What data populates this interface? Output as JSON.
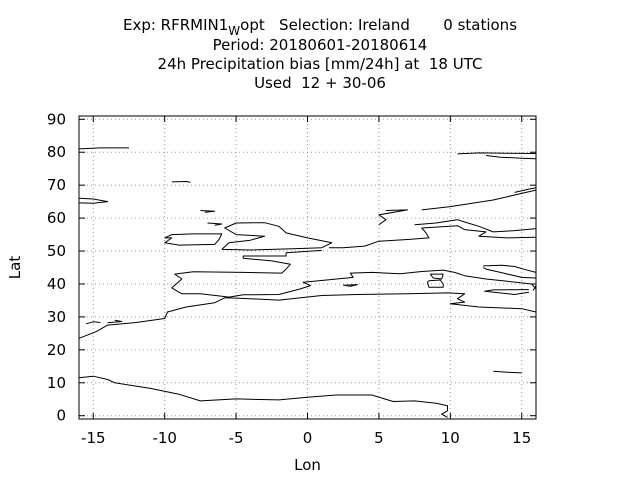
{
  "chart_data": {
    "type": "map",
    "title_lines": {
      "exp_prefix": "Exp: RFRMIN1",
      "exp_subscript": "W",
      "exp_suffix": "opt   Selection: Ireland       0 stations",
      "period": "Period: 20180601-20180614",
      "parameter": "24h Precipitation bias [mm/24h] at  18 UTC",
      "used": "Used  12 + 30-06"
    },
    "xlabel": "Lon",
    "ylabel": "Lat",
    "xlim": [
      -16,
      16
    ],
    "ylim": [
      -1,
      91
    ],
    "xticks": [
      -15,
      -10,
      -5,
      0,
      5,
      10,
      15
    ],
    "yticks": [
      0,
      10,
      20,
      30,
      40,
      50,
      60,
      70,
      80,
      90
    ],
    "xtick_labels": [
      "-15",
      "-10",
      "-5",
      "0",
      "5",
      "10",
      "15"
    ],
    "ytick_labels": [
      "0",
      "10",
      "20",
      "30",
      "40",
      "50",
      "60",
      "70",
      "80",
      "90"
    ],
    "grid": true,
    "stations": [],
    "coastlines": [
      [
        [
          -16,
          81.0
        ],
        [
          -14.5,
          81.3
        ],
        [
          -12.5,
          81.3
        ]
      ],
      [
        [
          -16,
          66.0
        ],
        [
          -15,
          65.8
        ],
        [
          -14,
          65.0
        ],
        [
          -15,
          64.5
        ],
        [
          -16,
          64.6
        ]
      ],
      [
        [
          -9.5,
          71.0
        ],
        [
          -8.5,
          71.1
        ],
        [
          -8.2,
          70.9
        ]
      ],
      [
        [
          -7.5,
          62.3
        ],
        [
          -6.5,
          62.1
        ],
        [
          -7.2,
          61.8
        ]
      ],
      [
        [
          -10,
          54.0
        ],
        [
          -9.5,
          55.0
        ],
        [
          -8,
          55.2
        ],
        [
          -6,
          55.2
        ],
        [
          -6.2,
          53.5
        ],
        [
          -6.5,
          52.0
        ],
        [
          -9,
          51.8
        ],
        [
          -10,
          52.5
        ],
        [
          -9.5,
          54.0
        ],
        [
          -10,
          54.0
        ]
      ],
      [
        [
          -6,
          50.5
        ],
        [
          -5.5,
          52.5
        ],
        [
          -4,
          53.3
        ],
        [
          -3,
          54.5
        ],
        [
          -5,
          55.0
        ],
        [
          -5.8,
          57.0
        ],
        [
          -5,
          58.5
        ],
        [
          -3,
          58.6
        ],
        [
          -2,
          57.5
        ],
        [
          -1.5,
          55.5
        ],
        [
          0,
          54.0
        ],
        [
          1.7,
          52.5
        ],
        [
          1,
          51.0
        ],
        [
          -1,
          50.7
        ],
        [
          -4,
          50.3
        ],
        [
          -6,
          50.5
        ]
      ],
      [
        [
          -7,
          58.5
        ],
        [
          -6,
          58.2
        ],
        [
          -6.5,
          57.8
        ]
      ],
      [
        [
          1.5,
          51.0
        ],
        [
          2.5,
          51.0
        ],
        [
          4,
          51.5
        ],
        [
          5,
          53.0
        ],
        [
          7,
          53.5
        ],
        [
          8.5,
          54.0
        ],
        [
          8.3,
          55.5
        ],
        [
          8,
          57.0
        ],
        [
          10.5,
          57.7
        ],
        [
          11,
          56.5
        ],
        [
          12.5,
          55.8
        ],
        [
          12,
          54.5
        ],
        [
          14,
          54.0
        ],
        [
          16,
          54.2
        ]
      ],
      [
        [
          5,
          58.0
        ],
        [
          5.5,
          59.5
        ],
        [
          5,
          61.0
        ],
        [
          7,
          62.5
        ],
        [
          5.5,
          62.3
        ]
      ],
      [
        [
          7.5,
          58.0
        ],
        [
          9,
          58.5
        ],
        [
          10.5,
          59.5
        ],
        [
          11,
          58.8
        ],
        [
          12,
          57.5
        ],
        [
          13,
          55.8
        ],
        [
          14.5,
          56.2
        ],
        [
          16,
          56.8
        ]
      ],
      [
        [
          8,
          62.5
        ],
        [
          10,
          63.5
        ],
        [
          13,
          65.5
        ],
        [
          15,
          67.5
        ],
        [
          16,
          68.5
        ]
      ],
      [
        [
          14.5,
          67.8
        ],
        [
          15.5,
          68.8
        ],
        [
          16,
          69.2
        ]
      ],
      [
        [
          12.5,
          79.0
        ],
        [
          13.5,
          78.5
        ],
        [
          15,
          78.2
        ],
        [
          16,
          78.0
        ]
      ],
      [
        [
          10.5,
          79.5
        ],
        [
          12,
          79.8
        ],
        [
          14,
          79.7
        ],
        [
          16,
          79.6
        ]
      ],
      [
        [
          1,
          50.2
        ],
        [
          -1.5,
          49.5
        ],
        [
          -1.5,
          48.5
        ],
        [
          -4.5,
          48.5
        ],
        [
          -4.5,
          47.8
        ],
        [
          -2.5,
          47.0
        ],
        [
          -1.2,
          46.0
        ],
        [
          -1.5,
          44.5
        ],
        [
          -1.8,
          43.3
        ],
        [
          -4.5,
          43.5
        ],
        [
          -8,
          43.7
        ],
        [
          -9.3,
          43.0
        ],
        [
          -8.8,
          41.5
        ],
        [
          -9.5,
          38.8
        ],
        [
          -8.8,
          37.0
        ],
        [
          -7.5,
          37.0
        ],
        [
          -6,
          36.3
        ],
        [
          -5.5,
          36.0
        ],
        [
          -4.5,
          36.7
        ],
        [
          -2,
          36.8
        ],
        [
          -0.5,
          38.5
        ],
        [
          0.2,
          39.5
        ],
        [
          -0.3,
          40.5
        ],
        [
          0.8,
          41.0
        ],
        [
          3.2,
          42.0
        ],
        [
          3,
          43.3
        ],
        [
          4.5,
          43.5
        ],
        [
          6.5,
          43.1
        ],
        [
          8,
          43.8
        ],
        [
          9.5,
          44.2
        ],
        [
          10.3,
          43.5
        ],
        [
          11,
          42.5
        ],
        [
          12.5,
          41.5
        ],
        [
          14,
          40.8
        ],
        [
          15.7,
          40.0
        ],
        [
          16,
          38.5
        ]
      ],
      [
        [
          15.8,
          38.0
        ],
        [
          16,
          39.5
        ]
      ],
      [
        [
          12.3,
          45.0
        ],
        [
          12.5,
          44.5
        ],
        [
          13.5,
          43.5
        ],
        [
          15,
          42.0
        ],
        [
          16,
          41.8
        ]
      ],
      [
        [
          12.3,
          45.5
        ],
        [
          13.6,
          45.7
        ],
        [
          14.5,
          45.3
        ],
        [
          15.3,
          44.3
        ],
        [
          16,
          43.5
        ]
      ],
      [
        [
          8.5,
          41.0
        ],
        [
          9.3,
          41.2
        ],
        [
          9.5,
          40.0
        ],
        [
          9.5,
          39.0
        ],
        [
          8.5,
          39.0
        ],
        [
          8.4,
          40.5
        ],
        [
          8.5,
          41.0
        ]
      ],
      [
        [
          8.6,
          43.0
        ],
        [
          9.5,
          43.0
        ],
        [
          9.4,
          41.5
        ],
        [
          8.8,
          41.8
        ],
        [
          8.6,
          43.0
        ]
      ],
      [
        [
          15.5,
          38.3
        ],
        [
          13,
          38.2
        ],
        [
          12.4,
          37.8
        ],
        [
          14.5,
          36.8
        ],
        [
          15.5,
          37.5
        ]
      ],
      [
        [
          2.5,
          39.6
        ],
        [
          3.5,
          39.8
        ],
        [
          3.0,
          39.3
        ],
        [
          2.5,
          39.6
        ]
      ],
      [
        [
          -16,
          23.5
        ],
        [
          -14.8,
          25.5
        ],
        [
          -14,
          27.5
        ],
        [
          -12,
          28.3
        ],
        [
          -10,
          29.5
        ],
        [
          -9.8,
          31.5
        ],
        [
          -8.5,
          33.0
        ],
        [
          -6.5,
          34.3
        ],
        [
          -5.8,
          35.8
        ],
        [
          -5,
          35.7
        ],
        [
          -2,
          35.1
        ],
        [
          1,
          36.5
        ],
        [
          3.5,
          36.8
        ],
        [
          7,
          37.0
        ],
        [
          9.8,
          37.3
        ],
        [
          11,
          37.0
        ],
        [
          10.5,
          35.5
        ],
        [
          11,
          34.5
        ],
        [
          10,
          34.0
        ],
        [
          12,
          33.0
        ],
        [
          15,
          32.5
        ],
        [
          16,
          31.5
        ]
      ],
      [
        [
          -16,
          11.5
        ],
        [
          -15,
          12.0
        ],
        [
          -14,
          11.0
        ],
        [
          -13.5,
          10.0
        ],
        [
          -12,
          9.0
        ],
        [
          -11,
          8.3
        ],
        [
          -9,
          6.5
        ],
        [
          -7.5,
          4.5
        ],
        [
          -5,
          5.1
        ],
        [
          -2,
          4.8
        ],
        [
          0,
          5.6
        ],
        [
          2,
          6.3
        ],
        [
          4.5,
          6.3
        ],
        [
          6,
          4.3
        ],
        [
          7.5,
          4.5
        ],
        [
          9,
          3.8
        ],
        [
          9.8,
          3.0
        ],
        [
          9.8,
          1.5
        ],
        [
          9.4,
          0.5
        ],
        [
          9.8,
          -0.5
        ]
      ],
      [
        [
          13,
          13.5
        ],
        [
          14,
          13.2
        ],
        [
          15,
          13.0
        ]
      ],
      [
        [
          -15.5,
          27.9
        ],
        [
          -15.0,
          28.5
        ],
        [
          -14.5,
          28.3
        ]
      ],
      [
        [
          -13.5,
          29.0
        ],
        [
          -13.0,
          28.6
        ],
        [
          -14,
          28.2
        ]
      ]
    ]
  }
}
